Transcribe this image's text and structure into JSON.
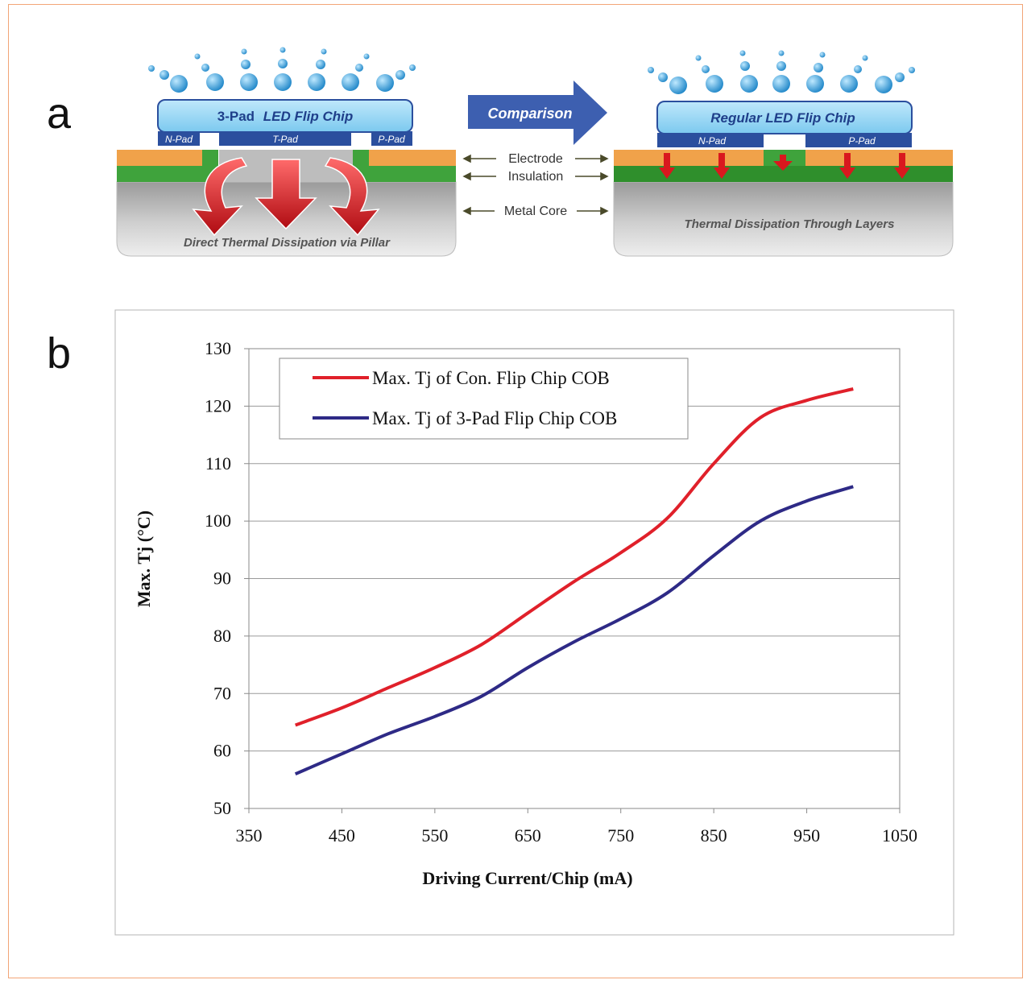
{
  "panel_a": {
    "letter": "a",
    "left_chip_title_bold": "3-Pad",
    "left_chip_title_rest": "LED Flip Chip",
    "left_pads": [
      "N-Pad",
      "T-Pad",
      "P-Pad"
    ],
    "left_caption": "Direct Thermal Dissipation via Pillar",
    "arrow_label": "Comparison",
    "layer_labels": [
      "Electrode",
      "Insulation",
      "Metal Core"
    ],
    "right_chip_title": "Regular LED Flip Chip",
    "right_pads": [
      "N-Pad",
      "P-Pad"
    ],
    "right_caption": "Thermal Dissipation Through Layers"
  },
  "panel_b": {
    "letter": "b"
  },
  "colors": {
    "con_series": "#e0202a",
    "pad3_series": "#2e2a86",
    "chip_blue": "#8fd3f4",
    "pad_blue": "#2b4f9e",
    "electrode": "#f0a24a",
    "insulation": "#3fa33c",
    "arrow_red": "#d9181e",
    "comparison_arrow": "#3d5fb0"
  },
  "chart_data": {
    "type": "line",
    "xlabel": "Driving Current/Chip (mA)",
    "ylabel": "Max. Tj (°C)",
    "xlim": [
      350,
      1050
    ],
    "ylim": [
      50,
      130
    ],
    "xticks": [
      350,
      450,
      550,
      650,
      750,
      850,
      950,
      1050
    ],
    "yticks": [
      50,
      60,
      70,
      80,
      90,
      100,
      110,
      120,
      130
    ],
    "grid": "horizontal",
    "legend_position": "top-left",
    "series": [
      {
        "name": "Max. Tj of Con. Flip Chip COB",
        "color": "#e0202a",
        "x": [
          400,
          450,
          500,
          550,
          600,
          650,
          700,
          750,
          800,
          850,
          900,
          950,
          1000
        ],
        "y": [
          64.5,
          67.5,
          71,
          74.5,
          78.5,
          84,
          89.5,
          94.5,
          100.5,
          110,
          118,
          121,
          123
        ]
      },
      {
        "name": "Max. Tj of 3-Pad Flip Chip COB",
        "color": "#2e2a86",
        "x": [
          400,
          450,
          500,
          550,
          600,
          650,
          700,
          750,
          800,
          850,
          900,
          950,
          1000
        ],
        "y": [
          56,
          59.5,
          63,
          66,
          69.5,
          74.5,
          79,
          83,
          87.5,
          94,
          100,
          103.5,
          106
        ]
      }
    ]
  }
}
